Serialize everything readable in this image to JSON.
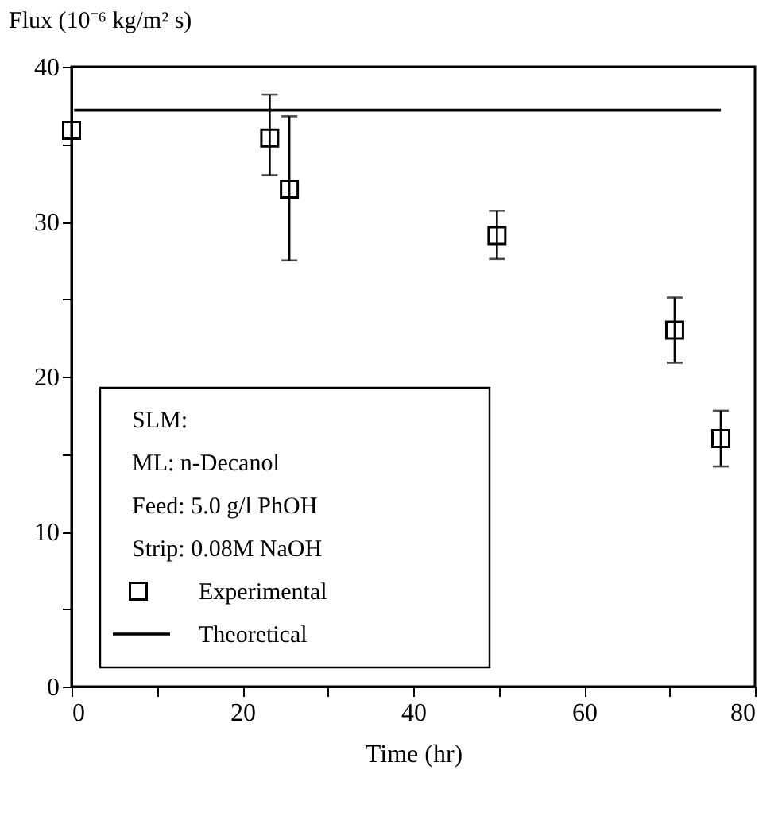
{
  "chart_data": {
    "type": "scatter",
    "ylabel": "Flux (10⁻⁶ kg/m² s)",
    "xlabel": "Time (hr)",
    "xlim": [
      0,
      80
    ],
    "ylim": [
      0,
      40
    ],
    "xticks": [
      0,
      {
        "value": 10,
        "label": null
      },
      20,
      {
        "value": 30,
        "label": null
      },
      40,
      {
        "value": 50,
        "label": null
      },
      60,
      {
        "value": 70,
        "label": null
      },
      80
    ],
    "yticks": [
      0,
      {
        "value": 5,
        "label": null
      },
      10,
      {
        "value": 15,
        "label": null
      },
      20,
      {
        "value": 25,
        "label": null
      },
      30,
      {
        "value": 35,
        "label": null
      },
      40
    ],
    "annotations": [
      "SLM:",
      "ML: n-Decanol",
      "Feed: 5.0 g/l PhOH",
      "Strip: 0.08M NaOH"
    ],
    "legend": "bottom left",
    "grid": false,
    "series": [
      {
        "name": "Experimental",
        "marker": "square",
        "color": "#000000",
        "x": [
          0,
          23.2,
          25.5,
          49.8,
          70.6,
          76
        ],
        "values": [
          35.9,
          35.4,
          32.1,
          29.1,
          23,
          16
        ],
        "errors": [
          null,
          [
            33,
            38.2
          ],
          [
            27.5,
            36.8
          ],
          [
            27.6,
            30.7
          ],
          [
            20.9,
            25.1
          ],
          [
            14.2,
            17.8
          ]
        ]
      },
      {
        "name": "Theoretical",
        "type": "line",
        "line_style": "solid",
        "color": "#000000",
        "x": [
          0.3,
          76
        ],
        "values": [
          37.2,
          37.2
        ]
      }
    ]
  }
}
